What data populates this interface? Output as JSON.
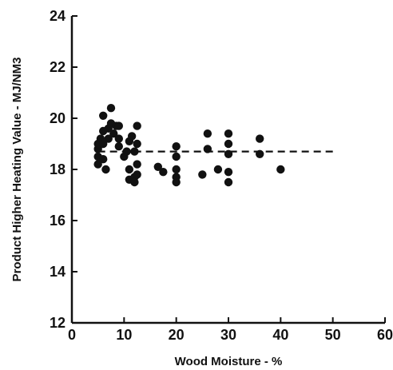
{
  "chart_data": {
    "type": "scatter",
    "title": "",
    "xlabel": "Wood Moisture - %",
    "ylabel": "Product Higher Heating Value - MJ/NM3",
    "xlim": [
      0,
      60
    ],
    "ylim": [
      12,
      24
    ],
    "x_ticks": [
      0,
      10,
      20,
      30,
      40,
      50,
      60
    ],
    "y_ticks": [
      12,
      14,
      16,
      18,
      20,
      22,
      24
    ],
    "grid": false,
    "legend": "none",
    "marker_color": "#111111",
    "reference_line": {
      "style": "dashed",
      "y": 18.7,
      "x_range": [
        5,
        50
      ]
    },
    "series": [
      {
        "points": [
          [
            5,
            18.2
          ],
          [
            5,
            18.5
          ],
          [
            5,
            18.8
          ],
          [
            5,
            19.0
          ],
          [
            5.5,
            19.2
          ],
          [
            6,
            18.4
          ],
          [
            6,
            19.0
          ],
          [
            6,
            19.5
          ],
          [
            6,
            20.1
          ],
          [
            6.5,
            18.0
          ],
          [
            7,
            19.6
          ],
          [
            7,
            19.2
          ],
          [
            7.5,
            20.4
          ],
          [
            7.5,
            19.8
          ],
          [
            8,
            19.4
          ],
          [
            8.5,
            19.7
          ],
          [
            9,
            19.7
          ],
          [
            9,
            19.2
          ],
          [
            9,
            18.9
          ],
          [
            10,
            18.5
          ],
          [
            10.5,
            18.7
          ],
          [
            11,
            18.0
          ],
          [
            11,
            17.6
          ],
          [
            11,
            19.1
          ],
          [
            11.5,
            19.3
          ],
          [
            12,
            18.7
          ],
          [
            12,
            17.7
          ],
          [
            12,
            17.5
          ],
          [
            12.5,
            19.7
          ],
          [
            12.5,
            19.0
          ],
          [
            12.5,
            18.2
          ],
          [
            12.5,
            17.8
          ],
          [
            16.5,
            18.1
          ],
          [
            17.5,
            17.9
          ],
          [
            20,
            18.9
          ],
          [
            20,
            18.5
          ],
          [
            20,
            18.0
          ],
          [
            20,
            17.7
          ],
          [
            20,
            17.5
          ],
          [
            25,
            17.8
          ],
          [
            26,
            19.4
          ],
          [
            26,
            18.8
          ],
          [
            28,
            18.0
          ],
          [
            30,
            19.4
          ],
          [
            30,
            19.0
          ],
          [
            30,
            18.6
          ],
          [
            30,
            17.9
          ],
          [
            30,
            17.5
          ],
          [
            36,
            19.2
          ],
          [
            36,
            18.6
          ],
          [
            40,
            18.0
          ]
        ]
      }
    ]
  }
}
